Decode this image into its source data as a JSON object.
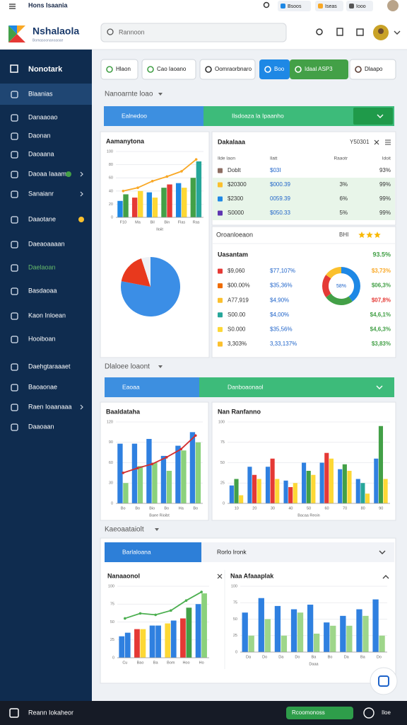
{
  "top_bar": {
    "menu_title": "Hons Isaania",
    "buttons": [
      "Bsoos",
      "Iseas",
      "Iooo"
    ]
  },
  "header": {
    "logo_title": "Nshalaola",
    "logo_subtitle": "Bomasoonanoaoae",
    "search_placeholder": "Rannoon"
  },
  "sidebar": {
    "title": "Nonotark",
    "items": [
      {
        "label": "Blaanias",
        "active": true
      },
      {
        "label": "Danaaoao"
      },
      {
        "label": "Daonan"
      },
      {
        "label": "Daoaana"
      },
      {
        "label": "Daoaa Iaaam",
        "badge_color": "#43a047",
        "chevron": true
      },
      {
        "label": "Sanaianr",
        "chevron": true
      },
      {
        "label": "Daaotane",
        "badge_color": "#fbc02d"
      },
      {
        "label": "Daeaoaaaan"
      },
      {
        "label": "Daelaoan",
        "label_color": "#66bb6a"
      },
      {
        "label": "Basdaoaa"
      },
      {
        "label": "Kaon Inloean"
      },
      {
        "label": "Hooiboan"
      },
      {
        "label": "Daehgtaraaaet"
      },
      {
        "label": "Baoaonae"
      },
      {
        "label": "Raen Ioaanaaa",
        "chevron": true
      },
      {
        "label": "Daaoaan"
      }
    ]
  },
  "toolbar": {
    "buttons": [
      {
        "label": "Hlaon",
        "icon_color": "#43a047"
      },
      {
        "label": "Cao Iaoano",
        "icon_color": "#43a047"
      },
      {
        "label": "Oomraorbnaro",
        "icon_color": "#333333"
      },
      {
        "label": "Boo",
        "fill": "#1e88e5",
        "icon_color": "#ffffff"
      },
      {
        "label": "Idaal ASP3",
        "fill": "#43a047",
        "icon_color": "#ffffff"
      },
      {
        "label": "Dlaapo",
        "icon_color": "#5d4037"
      }
    ]
  },
  "overview": {
    "title": "Nanoarnte loao",
    "tab_left": "Ealnedoo",
    "tab_right": "Ilsdoaza la Ipaanho",
    "combo_chart": {
      "type": "bar",
      "title": "Aamanytona",
      "axis_title": "Iloiit",
      "categories": [
        "F10",
        "Ma",
        "Bil",
        "Bin",
        "Flas",
        "Ras"
      ],
      "ylim": [
        0,
        100
      ],
      "yticks": [
        0,
        20,
        40,
        60,
        80,
        100
      ],
      "grid": true,
      "series": [
        {
          "values": [
            25,
            30,
            38,
            45,
            52,
            60
          ],
          "colors": [
            "#1e88e5",
            "#e53935",
            "#1e88e5",
            "#43a047",
            "#1e88e5",
            "#43a047"
          ]
        },
        {
          "values": [
            35,
            40,
            30,
            50,
            45,
            85
          ],
          "colors": [
            "#43a047",
            "#fdd835",
            "#fdd835",
            "#e53935",
            "#fdd835",
            "#26a69a"
          ]
        },
        {
          "type": "line",
          "color": "#f9a825",
          "values": [
            40,
            45,
            55,
            62,
            70,
            88
          ]
        }
      ]
    },
    "pie": {
      "type": "pie",
      "values": [
        78,
        17,
        5
      ],
      "colors": [
        "#3b8ee6",
        "#e8391d",
        "#eef1f5"
      ]
    },
    "table": {
      "title": "Dakalaaa",
      "filter": "Y50301",
      "columns": [
        "Ilde Iaon",
        "Ilatt",
        "Raaotr",
        "Idoit"
      ],
      "rows": [
        {
          "icon": "#8d6e63",
          "cells": [
            "Doblt",
            "$03I",
            null,
            "93%"
          ]
        },
        {
          "icon": "#fbc02d",
          "highlight": true,
          "cells": [
            "$20300",
            "$000.39",
            "3%",
            "99%"
          ]
        },
        {
          "icon": "#1e88e5",
          "highlight": true,
          "cells": [
            "$2300",
            "0059.39",
            "6%",
            "99%"
          ]
        },
        {
          "icon": "#5e35b1",
          "highlight": true,
          "cells": [
            "S0000",
            "$050.33",
            "5%",
            "99%"
          ]
        }
      ]
    },
    "list": {
      "title": "Oroanloeaon",
      "code": "BHI",
      "rating": 3,
      "header": "Uasantam",
      "header_value": "93.5%",
      "rows": [
        {
          "icon": "#e53935",
          "name": "$9,060",
          "value": "$77,107%",
          "change": "$3,73%",
          "change_color": "#f9a825"
        },
        {
          "icon": "#ef6c00",
          "name": "$00.00%",
          "value": "$35,36%",
          "change": "$06,3%",
          "change_color": "#43a047"
        },
        {
          "icon": "#fbc02d",
          "name": "A77,919",
          "value": "$4,90%",
          "change": "$07,8%",
          "change_color": "#e53935"
        },
        {
          "icon": "#26a69a",
          "name": "S00.00",
          "value": "$4,00%",
          "change": "$4,6,1%",
          "change_color": "#43a047"
        },
        {
          "icon": "#fdd835",
          "name": "S0.000",
          "value": "$35,56%",
          "change": "$4,6,3%",
          "change_color": "#43a047"
        },
        {
          "icon": "#fbc02d",
          "name": "3,303%",
          "value": "3,33,137%",
          "change": "$3,83%",
          "change_color": "#43a047"
        }
      ],
      "donut": {
        "type": "donut",
        "center_label": "58%",
        "values": [
          40,
          25,
          20,
          15
        ],
        "colors": [
          "#1e88e5",
          "#43a047",
          "#e53935",
          "#fbc02d"
        ]
      }
    }
  },
  "performance": {
    "title": "Dlaloee loaont",
    "tab_left": "Eaoaa",
    "tab_right": "Danboaonaol",
    "charts": [
      {
        "type": "bar",
        "title": "Baaldataha",
        "axis_title": "Baee Rioibt",
        "categories": [
          "Bo",
          "Bo",
          "Bio",
          "Bo",
          "Ha",
          "Bo"
        ],
        "ylim": [
          0,
          120
        ],
        "yticks": [
          0,
          30,
          60,
          90,
          120
        ],
        "grid": true,
        "series": [
          {
            "color": "#2f80e0",
            "values": [
              88,
              88,
              95,
              70,
              85,
              105
            ]
          },
          {
            "color": "#8bd17c",
            "values": [
              30,
              55,
              60,
              48,
              78,
              90
            ]
          },
          {
            "type": "line",
            "color": "#d32f2f",
            "values": [
              45,
              52,
              58,
              68,
              80,
              100
            ]
          }
        ]
      },
      {
        "type": "bar",
        "title": "Nan Ranfanno",
        "axis_title": "Bacaa Reoin",
        "categories": [
          "10",
          "20",
          "30",
          "40",
          "50",
          "60",
          "70",
          "80",
          "90"
        ],
        "ylim": [
          0,
          100
        ],
        "yticks": [
          0,
          25,
          50,
          75,
          100
        ],
        "grid": true,
        "series": [
          {
            "color": "#2f80e0",
            "values": [
              22,
              45,
              45,
              28,
              50,
              50,
              42,
              30,
              55
            ]
          },
          {
            "colors": [
              "#43a047",
              "#e53935",
              "#e53935",
              "#e53935",
              "#43a047",
              "#e53935",
              "#43a047",
              "#26a69a",
              "#43a047"
            ],
            "values": [
              30,
              35,
              55,
              20,
              40,
              62,
              48,
              25,
              95
            ]
          },
          {
            "color": "#fdd835",
            "values": [
              10,
              30,
              30,
              25,
              35,
              55,
              40,
              12,
              30
            ]
          }
        ]
      }
    ]
  },
  "analytics": {
    "title": "Kaeoaataiolt",
    "tab_left": "Barlaloana",
    "tab_right": "Rorlo Ironk",
    "charts": [
      {
        "type": "bar",
        "title": "Nanaaonol",
        "categories": [
          "Cu",
          "Bao",
          "Ba",
          "Bom",
          "Hoo",
          "Ho"
        ],
        "ylim": [
          0,
          100
        ],
        "yticks": [
          0,
          25,
          50,
          75,
          100
        ],
        "grid": true,
        "series": [
          {
            "colors": [
              "#2f80e0",
              "#e53935",
              "#2f80e0",
              "#fdd835",
              "#e53935",
              "#2f80e0"
            ],
            "values": [
              30,
              40,
              45,
              48,
              55,
              75
            ]
          },
          {
            "colors": [
              "#2f80e0",
              "#fdd835",
              "#2f80e0",
              "#2f80e0",
              "#43a047",
              "#8bd17c"
            ],
            "values": [
              35,
              40,
              45,
              52,
              70,
              90
            ]
          },
          {
            "type": "line",
            "color": "#4caf50",
            "values": [
              55,
              62,
              60,
              66,
              80,
              92
            ]
          }
        ]
      },
      {
        "type": "bar",
        "title": "Naa Afaaaplak",
        "axis_title": "Daaa",
        "categories": [
          "Da",
          "Do",
          "Da",
          "Do",
          "Ba",
          "Bo",
          "Da",
          "Ba",
          "Do"
        ],
        "ylim": [
          0,
          100
        ],
        "yticks": [
          0,
          25,
          50,
          75,
          100
        ],
        "grid": true,
        "series": [
          {
            "color": "#2f80e0",
            "values": [
              60,
              82,
              70,
              65,
              72,
              45,
              55,
              65,
              80
            ]
          },
          {
            "color": "#9ed68a",
            "values": [
              25,
              50,
              25,
              60,
              28,
              40,
              40,
              55,
              25
            ]
          }
        ]
      }
    ]
  },
  "bottom_bar": {
    "label": "Reann Iokaheor",
    "button": "Rcoomonoss",
    "link": "Iloe"
  }
}
